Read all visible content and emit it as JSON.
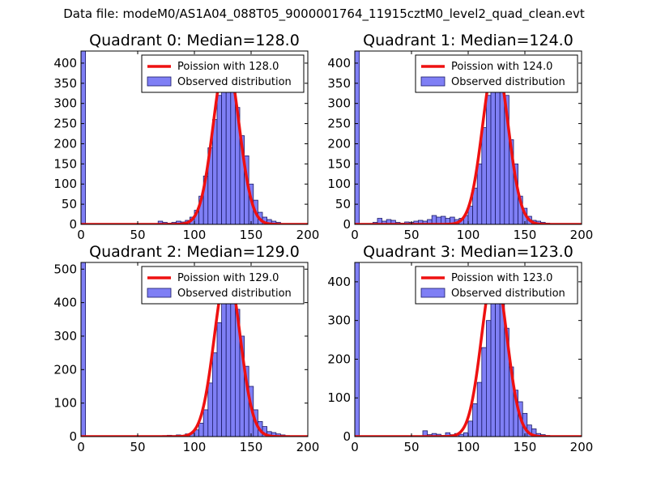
{
  "figure": {
    "suptitle": "Data file: modeM0/AS1A04_088T05_9000001764_11915cztM0_level2_quad_clean.evt"
  },
  "colors": {
    "bar": "#7f7ff5",
    "barEdge": "#1a1a66",
    "line": "#ee1111"
  },
  "chart_data": [
    {
      "type": "bar",
      "title": "Quadrant 0: Median=128.0",
      "xlim": [
        0,
        200
      ],
      "ylim": [
        0,
        430
      ],
      "xticks": [
        0,
        50,
        100,
        150,
        200
      ],
      "yticks": [
        0,
        50,
        100,
        150,
        200,
        250,
        300,
        350,
        400
      ],
      "bin_width": 4,
      "bins": [
        [
          0,
          430
        ],
        [
          68,
          8
        ],
        [
          72,
          5
        ],
        [
          76,
          3
        ],
        [
          80,
          5
        ],
        [
          84,
          8
        ],
        [
          88,
          6
        ],
        [
          92,
          10
        ],
        [
          96,
          18
        ],
        [
          100,
          35
        ],
        [
          104,
          70
        ],
        [
          108,
          120
        ],
        [
          112,
          190
        ],
        [
          116,
          260
        ],
        [
          120,
          320
        ],
        [
          124,
          395
        ],
        [
          128,
          400
        ],
        [
          132,
          360
        ],
        [
          136,
          290
        ],
        [
          140,
          220
        ],
        [
          144,
          170
        ],
        [
          148,
          100
        ],
        [
          152,
          60
        ],
        [
          156,
          30
        ],
        [
          160,
          18
        ],
        [
          164,
          12
        ],
        [
          168,
          8
        ],
        [
          172,
          5
        ],
        [
          176,
          2
        ],
        [
          180,
          1
        ],
        [
          184,
          1
        ]
      ],
      "poisson_mean": 128,
      "poisson_peak": 412,
      "legend": {
        "line": "Poission with 128.0",
        "bars": "Observed distribution"
      }
    },
    {
      "type": "bar",
      "title": "Quadrant 1: Median=124.0",
      "xlim": [
        0,
        200
      ],
      "ylim": [
        0,
        430
      ],
      "xticks": [
        0,
        50,
        100,
        150,
        200
      ],
      "yticks": [
        0,
        50,
        100,
        150,
        200,
        250,
        300,
        350,
        400
      ],
      "bin_width": 4,
      "bins": [
        [
          0,
          430
        ],
        [
          16,
          5
        ],
        [
          20,
          15
        ],
        [
          24,
          8
        ],
        [
          28,
          12
        ],
        [
          32,
          10
        ],
        [
          36,
          5
        ],
        [
          40,
          3
        ],
        [
          44,
          6
        ],
        [
          48,
          5
        ],
        [
          52,
          8
        ],
        [
          56,
          10
        ],
        [
          60,
          8
        ],
        [
          64,
          12
        ],
        [
          68,
          22
        ],
        [
          72,
          18
        ],
        [
          76,
          20
        ],
        [
          80,
          15
        ],
        [
          84,
          18
        ],
        [
          88,
          12
        ],
        [
          92,
          15
        ],
        [
          96,
          22
        ],
        [
          100,
          45
        ],
        [
          104,
          90
        ],
        [
          108,
          150
        ],
        [
          112,
          240
        ],
        [
          116,
          320
        ],
        [
          120,
          370
        ],
        [
          124,
          410
        ],
        [
          128,
          390
        ],
        [
          132,
          320
        ],
        [
          136,
          210
        ],
        [
          140,
          150
        ],
        [
          144,
          70
        ],
        [
          148,
          40
        ],
        [
          152,
          20
        ],
        [
          156,
          10
        ],
        [
          160,
          8
        ],
        [
          164,
          5
        ],
        [
          168,
          3
        ],
        [
          172,
          2
        ],
        [
          176,
          1
        ]
      ],
      "poisson_mean": 124,
      "poisson_peak": 410,
      "legend": {
        "line": "Poission with 124.0",
        "bars": "Observed distribution"
      }
    },
    {
      "type": "bar",
      "title": "Quadrant 2: Median=129.0",
      "xlim": [
        0,
        200
      ],
      "ylim": [
        0,
        520
      ],
      "xticks": [
        0,
        50,
        100,
        150,
        200
      ],
      "yticks": [
        0,
        100,
        200,
        300,
        400,
        500
      ],
      "bin_width": 4,
      "bins": [
        [
          0,
          520
        ],
        [
          72,
          3
        ],
        [
          76,
          4
        ],
        [
          80,
          3
        ],
        [
          84,
          5
        ],
        [
          88,
          4
        ],
        [
          92,
          8
        ],
        [
          96,
          10
        ],
        [
          100,
          20
        ],
        [
          104,
          40
        ],
        [
          108,
          80
        ],
        [
          112,
          160
        ],
        [
          116,
          250
        ],
        [
          120,
          340
        ],
        [
          124,
          440
        ],
        [
          128,
          480
        ],
        [
          132,
          470
        ],
        [
          136,
          380
        ],
        [
          140,
          300
        ],
        [
          144,
          210
        ],
        [
          148,
          150
        ],
        [
          152,
          80
        ],
        [
          156,
          45
        ],
        [
          160,
          30
        ],
        [
          164,
          15
        ],
        [
          168,
          12
        ],
        [
          172,
          8
        ],
        [
          176,
          5
        ],
        [
          180,
          3
        ],
        [
          184,
          2
        ]
      ],
      "poisson_mean": 129,
      "poisson_peak": 495,
      "legend": {
        "line": "Poission with 129.0",
        "bars": "Observed distribution"
      }
    },
    {
      "type": "bar",
      "title": "Quadrant 3: Median=123.0",
      "xlim": [
        0,
        200
      ],
      "ylim": [
        0,
        450
      ],
      "xticks": [
        0,
        50,
        100,
        150,
        200
      ],
      "yticks": [
        0,
        100,
        200,
        300,
        400
      ],
      "bin_width": 4,
      "bins": [
        [
          0,
          450
        ],
        [
          60,
          15
        ],
        [
          64,
          5
        ],
        [
          68,
          8
        ],
        [
          72,
          6
        ],
        [
          76,
          3
        ],
        [
          80,
          10
        ],
        [
          84,
          5
        ],
        [
          88,
          8
        ],
        [
          92,
          6
        ],
        [
          96,
          10
        ],
        [
          100,
          40
        ],
        [
          104,
          85
        ],
        [
          108,
          140
        ],
        [
          112,
          230
        ],
        [
          116,
          300
        ],
        [
          120,
          390
        ],
        [
          124,
          410
        ],
        [
          128,
          380
        ],
        [
          132,
          280
        ],
        [
          136,
          180
        ],
        [
          140,
          120
        ],
        [
          144,
          90
        ],
        [
          148,
          60
        ],
        [
          152,
          30
        ],
        [
          156,
          20
        ],
        [
          160,
          8
        ],
        [
          164,
          5
        ],
        [
          168,
          3
        ]
      ],
      "poisson_mean": 123,
      "poisson_peak": 430,
      "legend": {
        "line": "Poission with 123.0",
        "bars": "Observed distribution"
      }
    }
  ]
}
